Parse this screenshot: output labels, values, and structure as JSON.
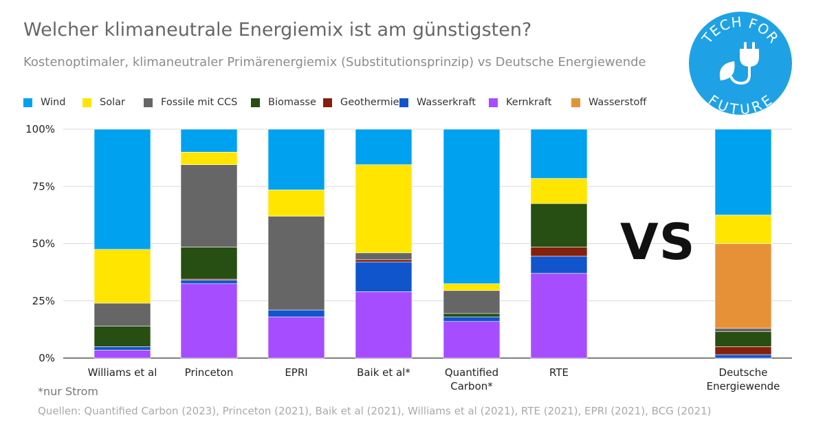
{
  "title": "Welcher klimaneutrale Energiemix ist am günstigsten?",
  "subtitle": "Kostenoptimaler, klimaneutraler Primärenergiemix (Substitutionsprinzip) vs Deutsche Energiewende",
  "vs_label": "VS",
  "footnote": "*nur Strom",
  "sources": "Quellen: Quantified Carbon (2023), Princeton (2021), Baik et al (2021), Williams et al (2021), RTE (2021), EPRI (2021), BCG (2021)",
  "logo": {
    "top_text": "TECH FOR",
    "bottom_text": "FUTURE",
    "icon": "plug-leaf-icon",
    "color": "#1ea2e5"
  },
  "chart_data": {
    "type": "bar",
    "stacked": true,
    "categories": [
      "Williams et al",
      "Princeton",
      "EPRI",
      "Baik et al*",
      "Quantified Carbon*",
      "RTE",
      "Deutsche Energiewende"
    ],
    "y_ticks": [
      "0%",
      "25%",
      "50%",
      "75%",
      "100%"
    ],
    "ylim": [
      0,
      100
    ],
    "grid": true,
    "legend_position": "top",
    "series": [
      {
        "name": "Kernkraft",
        "color": "#a64dff",
        "values": [
          3.5,
          32.5,
          18,
          29,
          16,
          37,
          0
        ]
      },
      {
        "name": "Wasserkraft",
        "color": "#1155cc",
        "values": [
          1.5,
          1.5,
          3,
          13,
          2,
          7.5,
          1.5
        ]
      },
      {
        "name": "Geothermie",
        "color": "#85200c",
        "values": [
          0,
          0.5,
          0,
          1,
          0,
          4,
          3.5
        ]
      },
      {
        "name": "Biomasse",
        "color": "#274e13",
        "values": [
          9,
          14,
          0,
          0,
          1.5,
          19,
          6.5
        ]
      },
      {
        "name": "Fossile mit CCS",
        "color": "#666666",
        "values": [
          10,
          36,
          41,
          3,
          10,
          0,
          1.5
        ]
      },
      {
        "name": "Wasserstoff",
        "color": "#e69138",
        "values": [
          0,
          0,
          0,
          0,
          0,
          0,
          37
        ]
      },
      {
        "name": "Solar",
        "color": "#ffe500",
        "values": [
          23.5,
          5.5,
          11.5,
          38.5,
          3,
          11,
          12.5
        ]
      },
      {
        "name": "Wind",
        "color": "#00a2f0",
        "values": [
          52.5,
          10,
          26.5,
          15.5,
          67.5,
          21.5,
          37.5
        ]
      }
    ],
    "legend_order": [
      "Wind",
      "Solar",
      "Fossile mit CCS",
      "Biomasse",
      "Geothermie",
      "Wasserkraft",
      "Kernkraft",
      "Wasserstoff"
    ]
  }
}
